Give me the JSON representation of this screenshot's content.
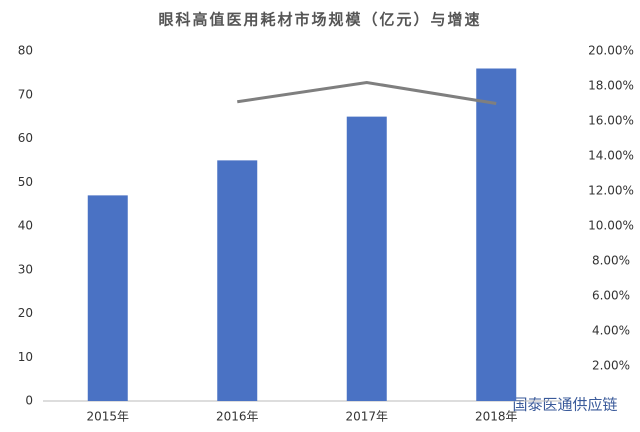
{
  "chart_data": {
    "type": "bar",
    "title": "眼科高值医用耗材市场规模（亿元）与增速",
    "categories": [
      "2015年",
      "2016年",
      "2017年",
      "2018年"
    ],
    "series": [
      {
        "type": "bar",
        "color": "#4a72c4",
        "values": [
          47,
          55,
          65,
          76
        ]
      },
      {
        "type": "line",
        "axis": "y2",
        "color": "#7f7f7f",
        "values": [
          null,
          17.1,
          18.2,
          17.0
        ]
      }
    ],
    "ylim": [
      0,
      80
    ],
    "yticks": [
      0,
      10,
      20,
      30,
      40,
      50,
      60,
      70,
      80
    ],
    "y2lim": [
      0,
      20
    ],
    "y2ticks": [
      {
        "value": 2,
        "label": "2.00%"
      },
      {
        "value": 4,
        "label": "4.00%"
      },
      {
        "value": 6,
        "label": "6.00%"
      },
      {
        "value": 8,
        "label": "8.00%"
      },
      {
        "value": 10,
        "label": "10.00%"
      },
      {
        "value": 12,
        "label": "12.00%"
      },
      {
        "value": 14,
        "label": "14.00%"
      },
      {
        "value": 16,
        "label": "16.00%"
      },
      {
        "value": 18,
        "label": "18.00%"
      },
      {
        "value": 20,
        "label": "20.00%"
      }
    ],
    "grid": false,
    "watermark": "国泰医通供应链"
  }
}
